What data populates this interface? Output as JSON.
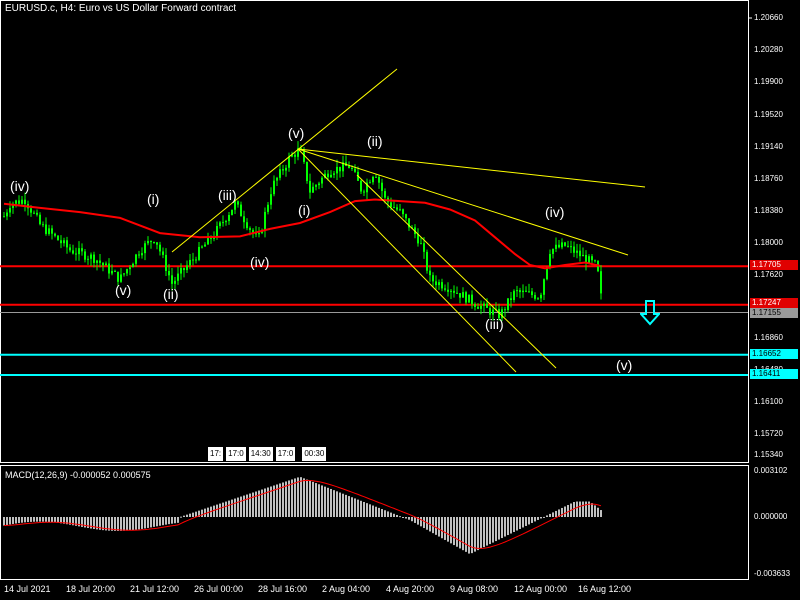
{
  "chart_title": "EURUSD.c, H4:  Euro vs US Dollar Forward contract",
  "macd_title": "MACD(12,26,9) -0.000052 0.000575",
  "price_axis": [
    {
      "label": "1.20660",
      "value": 1.2066
    },
    {
      "label": "1.20280",
      "value": 1.2028
    },
    {
      "label": "1.19900",
      "value": 1.199
    },
    {
      "label": "1.19520",
      "value": 1.1952
    },
    {
      "label": "1.19140",
      "value": 1.1914
    },
    {
      "label": "1.18760",
      "value": 1.1876
    },
    {
      "label": "1.18380",
      "value": 1.1838
    },
    {
      "label": "1.18000",
      "value": 1.18
    },
    {
      "label": "1.17620",
      "value": 1.1762
    },
    {
      "label": "1.16860",
      "value": 1.1686
    },
    {
      "label": "1.16480",
      "value": 1.1648
    },
    {
      "label": "1.16100",
      "value": 1.161
    },
    {
      "label": "1.15720",
      "value": 1.1572
    },
    {
      "label": "1.15340",
      "value": 1.1534
    }
  ],
  "price_tags": [
    {
      "label": "1.17705",
      "value": 1.17705,
      "bg": "#e00000",
      "fg": "#ffffff"
    },
    {
      "label": "1.17247",
      "value": 1.17247,
      "bg": "#e00000",
      "fg": "#ffffff"
    },
    {
      "label": "1.17155",
      "value": 1.17155,
      "bg": "#9a9a9a",
      "fg": "#000000"
    },
    {
      "label": "1.16652",
      "value": 1.16652,
      "bg": "#00ffff",
      "fg": "#000000"
    },
    {
      "label": "1.16411",
      "value": 1.16411,
      "bg": "#00ffff",
      "fg": "#000000"
    }
  ],
  "macd_axis": [
    {
      "label": "0.003102",
      "value": 0.003102
    },
    {
      "label": "0.000000",
      "value": 0
    },
    {
      "label": "-0.003633",
      "value": -0.003633
    }
  ],
  "time_axis": [
    "14 Jul 2021",
    "18 Jul 20:00",
    "21 Jul 12:00",
    "26 Jul 00:00",
    "28 Jul 16:00",
    "2 Aug 04:00",
    "4 Aug 20:00",
    "9 Aug 08:00",
    "12 Aug 00:00",
    "16 Aug 12:00"
  ],
  "wave_labels": [
    "(iv)",
    "(v)",
    "(i)",
    "(ii)",
    "(iii)",
    "(iv)",
    "(v)",
    "(i)",
    "(ii)",
    "(iii)",
    "(iv)",
    "(v)"
  ],
  "period_chips": [
    "17:",
    "17:0",
    "14:30",
    "17:0",
    "00:30"
  ],
  "colors": {
    "background": "#000000",
    "candles": "#00ff00",
    "moving_average": "#ff0000",
    "trendlines": "#ffff00",
    "support_lines": "#00ffff",
    "resistance_lines": "#ff0000",
    "macd_signal": "#ff0000",
    "macd_histogram": "#c0c0c0",
    "sell_arrow": "#00ffff"
  },
  "icons": {
    "sell_arrow": "down-arrow-icon"
  }
}
